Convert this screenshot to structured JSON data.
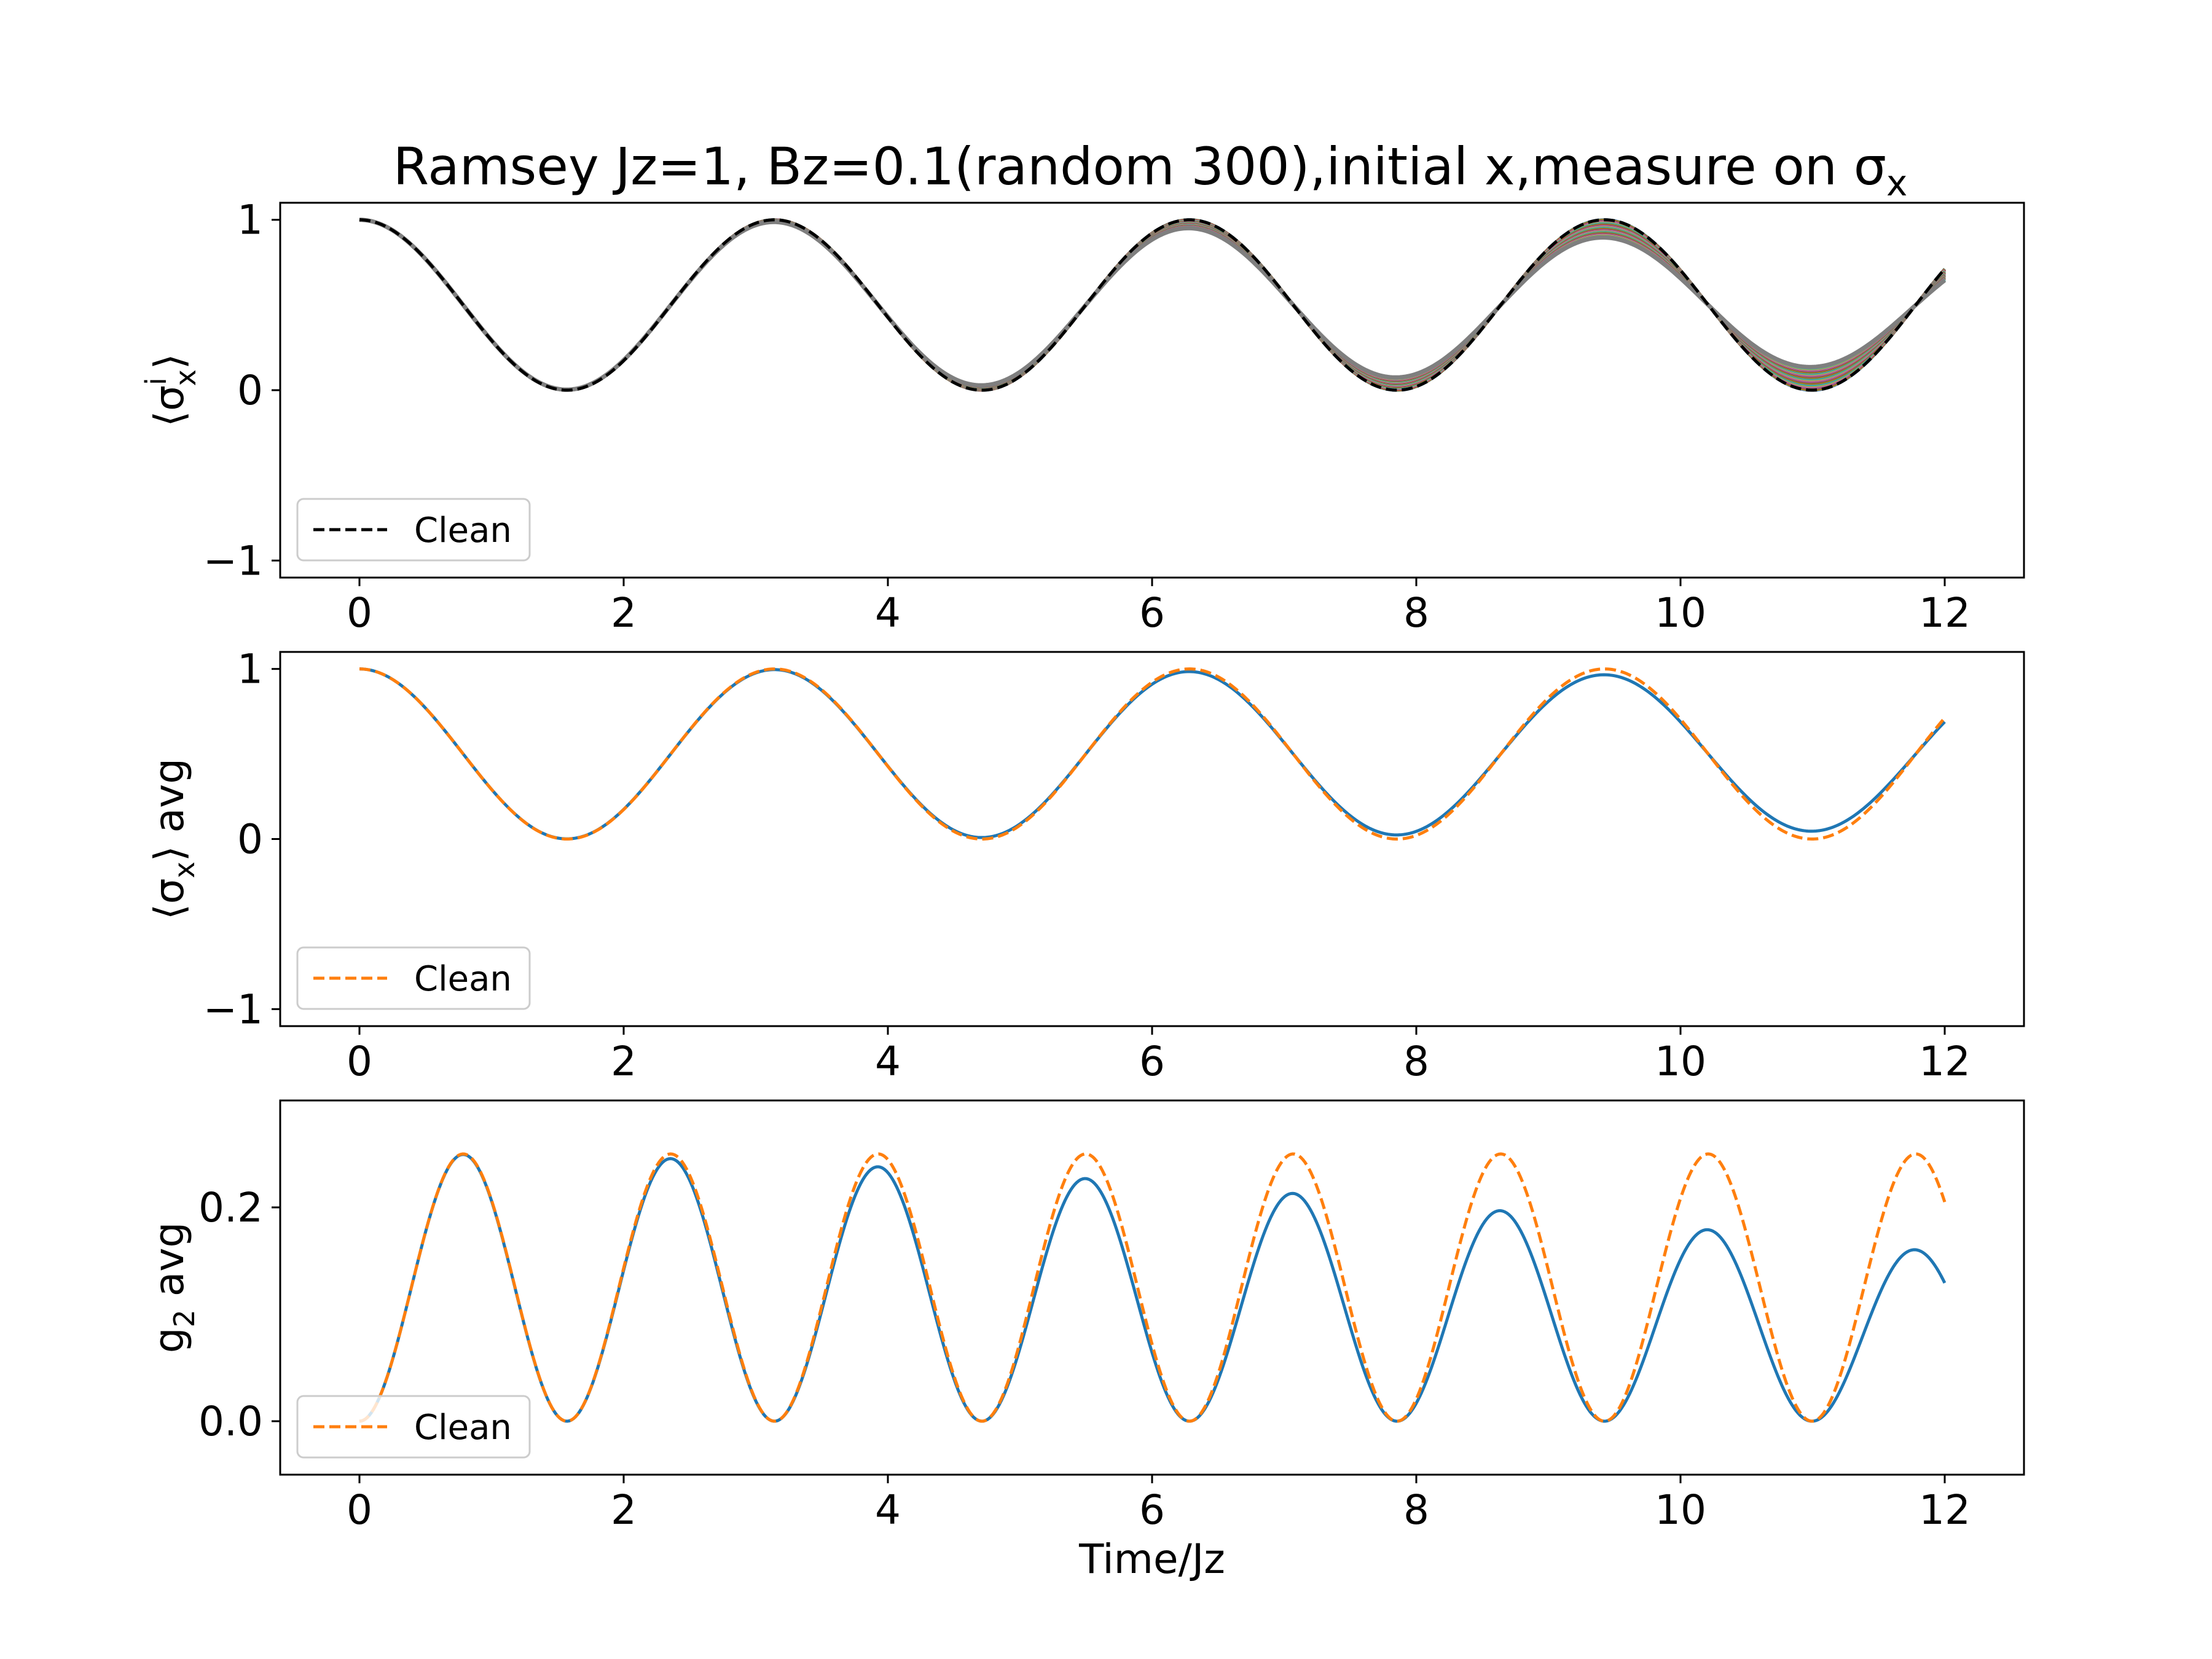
{
  "figure": {
    "title": "Ramsey Jz=1, Bz=0.1(random 300),initial x,measure on σ",
    "title_subscript": "x"
  },
  "chart_data": [
    {
      "type": "line",
      "title": "Ramsey Jz=1, Bz=0.1(random 300),initial x,measure on σx",
      "ylabel": {
        "open": "⟨σ",
        "sup": "i",
        "sub": "x",
        "close": "⟩"
      },
      "xlabel": "",
      "xlim": [
        -0.6,
        12.6
      ],
      "ylim": [
        -1.1,
        1.1
      ],
      "xticks": [
        0,
        2,
        4,
        6,
        8,
        10,
        12
      ],
      "yticks": [
        -1,
        0,
        1
      ],
      "x_range": [
        0,
        12
      ],
      "legend": {
        "position": "lower-left",
        "entries": [
          "Clean"
        ]
      },
      "series": [
        {
          "name": "Clean",
          "kind": "clean-bound-sigma-x",
          "style": "dashed",
          "color": "#000000"
        }
      ],
      "ensemble": {
        "count": 300,
        "kind": "sigma-x-envelope",
        "envelope_decay_lower": 0.0025,
        "colors": [
          "#1f77b4",
          "#ff7f0e",
          "#2ca02c",
          "#d62728",
          "#9467bd",
          "#8c564b",
          "#e377c2",
          "#7f7f7f",
          "#bcbd22",
          "#17becf"
        ]
      }
    },
    {
      "type": "line",
      "ylabel": {
        "open": "⟨σ",
        "sub": "x",
        "close": "⟩ avg"
      },
      "xlabel": "",
      "xlim": [
        -0.6,
        12.6
      ],
      "ylim": [
        -1.1,
        1.1
      ],
      "xticks": [
        0,
        2,
        4,
        6,
        8,
        10,
        12
      ],
      "yticks": [
        -1,
        0,
        1
      ],
      "x_range": [
        0,
        12
      ],
      "legend": {
        "position": "lower-left",
        "entries": [
          "Clean"
        ]
      },
      "series": [
        {
          "name": "",
          "kind": "avg-sigma-x",
          "style": "solid",
          "color": "#1f77b4",
          "decay": 0.0008
        },
        {
          "name": "Clean",
          "kind": "clean-sigma-x",
          "style": "dashed",
          "color": "#ff7f0e"
        }
      ]
    },
    {
      "type": "line",
      "ylabel": {
        "open": "g",
        "sub": "2",
        "close": " avg"
      },
      "xlabel": "Time/Jz",
      "xlim": [
        -0.6,
        12.6
      ],
      "ylim": [
        -0.05,
        0.3
      ],
      "xticks": [
        0,
        2,
        4,
        6,
        8,
        10,
        12
      ],
      "yticks": [
        0.0,
        0.2
      ],
      "ytick_labels": [
        "0.0",
        "0.2"
      ],
      "x_range": [
        0,
        12
      ],
      "legend": {
        "position": "lower-left",
        "entries": [
          "Clean"
        ]
      },
      "series": [
        {
          "name": "",
          "kind": "avg-g2",
          "style": "solid",
          "color": "#1f77b4",
          "decay": 0.0032
        },
        {
          "name": "Clean",
          "kind": "clean-g2",
          "style": "dashed",
          "color": "#ff7f0e"
        }
      ]
    }
  ]
}
